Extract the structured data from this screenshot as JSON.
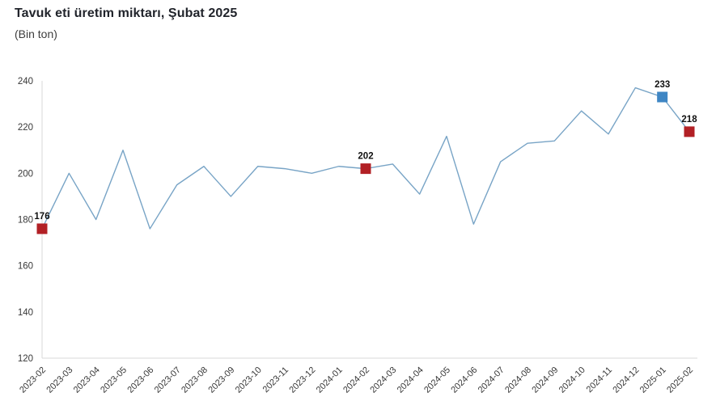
{
  "header": {
    "title": "Tavuk eti üretim miktarı, Şubat 2025",
    "subtitle": "(Bin ton)"
  },
  "chart_data": {
    "type": "line",
    "title": "Tavuk eti üretim miktarı, Şubat 2025",
    "subtitle": "(Bin ton)",
    "xlabel": "",
    "ylabel": "",
    "categories": [
      "2023-02",
      "2023-03",
      "2023-04",
      "2023-05",
      "2023-06",
      "2023-07",
      "2023-08",
      "2023-09",
      "2023-10",
      "2023-11",
      "2023-12",
      "2024-01",
      "2024-02",
      "2024-03",
      "2024-04",
      "2024-05",
      "2024-06",
      "2024-07",
      "2024-08",
      "2024-09",
      "2024-10",
      "2024-11",
      "2024-12",
      "2025-01",
      "2025-02"
    ],
    "values": [
      176,
      200,
      180,
      210,
      176,
      195,
      203,
      190,
      203,
      202,
      200,
      203,
      202,
      204,
      191,
      216,
      178,
      205,
      213,
      214,
      227,
      217,
      237,
      233,
      218
    ],
    "ylim": [
      120,
      240
    ],
    "yticks": [
      120,
      140,
      160,
      180,
      200,
      220,
      240
    ],
    "grid": false,
    "legend": "none",
    "line_color": "#78A4C6",
    "axis_color": "#D9D9D9",
    "tick_label_color": "#383838",
    "data_label_color": "#111111",
    "markers": [
      {
        "category": "2023-02",
        "value": 176,
        "label": "176",
        "color": "#B22025"
      },
      {
        "category": "2024-02",
        "value": 202,
        "label": "202",
        "color": "#B22025"
      },
      {
        "category": "2025-01",
        "value": 233,
        "label": "233",
        "color": "#3E86C4"
      },
      {
        "category": "2025-02",
        "value": 218,
        "label": "218",
        "color": "#B22025"
      }
    ]
  }
}
